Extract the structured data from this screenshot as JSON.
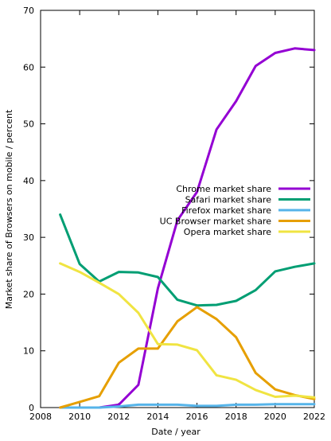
{
  "chart_data": {
    "type": "line",
    "xlabel": "Date / year",
    "ylabel": "Market share of Browsers on mobile / percent",
    "xlim": [
      2008,
      2022
    ],
    "ylim": [
      0,
      70
    ],
    "xticks": [
      "2008",
      "2010",
      "2012",
      "2014",
      "2016",
      "2018",
      "2020",
      "2022"
    ],
    "yticks": [
      "0",
      "10",
      "20",
      "30",
      "40",
      "50",
      "60",
      "70"
    ],
    "grid": false,
    "legend_position": "right, mid-height",
    "x": [
      2009,
      2010,
      2011,
      2012,
      2013,
      2014,
      2015,
      2016,
      2017,
      2018,
      2019,
      2020,
      2021,
      2022
    ],
    "series": [
      {
        "name": "Chrome market share",
        "color": "#9400D3",
        "values": [
          0,
          0,
          0,
          0.5,
          4,
          21,
          33,
          38,
          49,
          54,
          60.2,
          62.5,
          63.3,
          63
        ]
      },
      {
        "name": "Safari market share",
        "color": "#009E73",
        "values": [
          34,
          25.3,
          22.2,
          23.9,
          23.8,
          23,
          19,
          18,
          18.1,
          18.8,
          20.7,
          24,
          24.8,
          25.4
        ]
      },
      {
        "name": "Firefox market share",
        "color": "#56B4E9",
        "values": [
          0,
          0,
          0,
          0.2,
          0.5,
          0.5,
          0.5,
          0.3,
          0.3,
          0.5,
          0.5,
          0.6,
          0.6,
          0.6
        ]
      },
      {
        "name": "UC Browser market share",
        "color": "#E69F00",
        "values": [
          0,
          1,
          2,
          7.9,
          10.4,
          10.4,
          15.2,
          17.7,
          15.6,
          12.4,
          6.1,
          3.2,
          2.2,
          1.5
        ]
      },
      {
        "name": "Opera market share",
        "color": "#F0E442",
        "values": [
          25.4,
          23.9,
          22,
          20,
          16.7,
          11.2,
          11.1,
          10.1,
          5.7,
          4.9,
          3.1,
          1.9,
          2.1,
          1.8
        ]
      }
    ]
  }
}
